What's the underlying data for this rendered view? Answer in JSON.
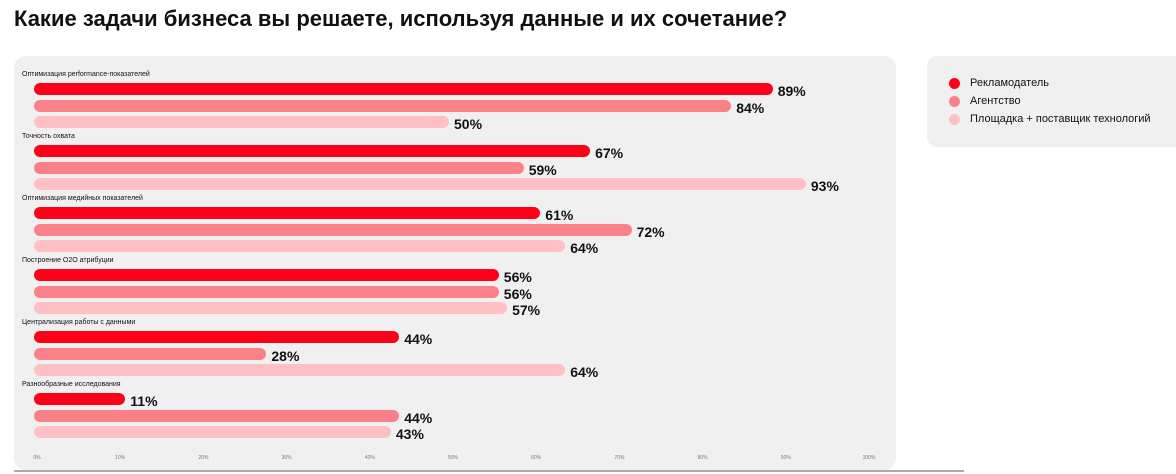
{
  "title": "Какие задачи бизнеса вы решаете, используя данные и их сочетание?",
  "chart_data": {
    "type": "bar",
    "orientation": "horizontal",
    "title": "Какие задачи бизнеса вы решаете, используя данные и их сочетание?",
    "categories": [
      "Оптимизация performance-показателей",
      "Точность охвата",
      "Оптимизация медийных показателей",
      "Построение O2O атрибуции",
      "Централизация работы с данными",
      "Разнообразные исследования"
    ],
    "series": [
      {
        "name": "Рекламодатель",
        "color": "#ff0019",
        "values": [
          89,
          67,
          61,
          56,
          44,
          11
        ]
      },
      {
        "name": "Агентство",
        "color": "#fb8189",
        "values": [
          84,
          59,
          72,
          56,
          28,
          44
        ]
      },
      {
        "name": "Площадка + поставщик технологий",
        "color": "#ffc0c5",
        "values": [
          50,
          93,
          64,
          57,
          64,
          43
        ]
      }
    ],
    "xlim": [
      0,
      100
    ],
    "xticks": [
      "0%",
      "10%",
      "20%",
      "30%",
      "40%",
      "50%",
      "60%",
      "70%",
      "80%",
      "90%",
      "100%"
    ],
    "legend": "top-right"
  }
}
